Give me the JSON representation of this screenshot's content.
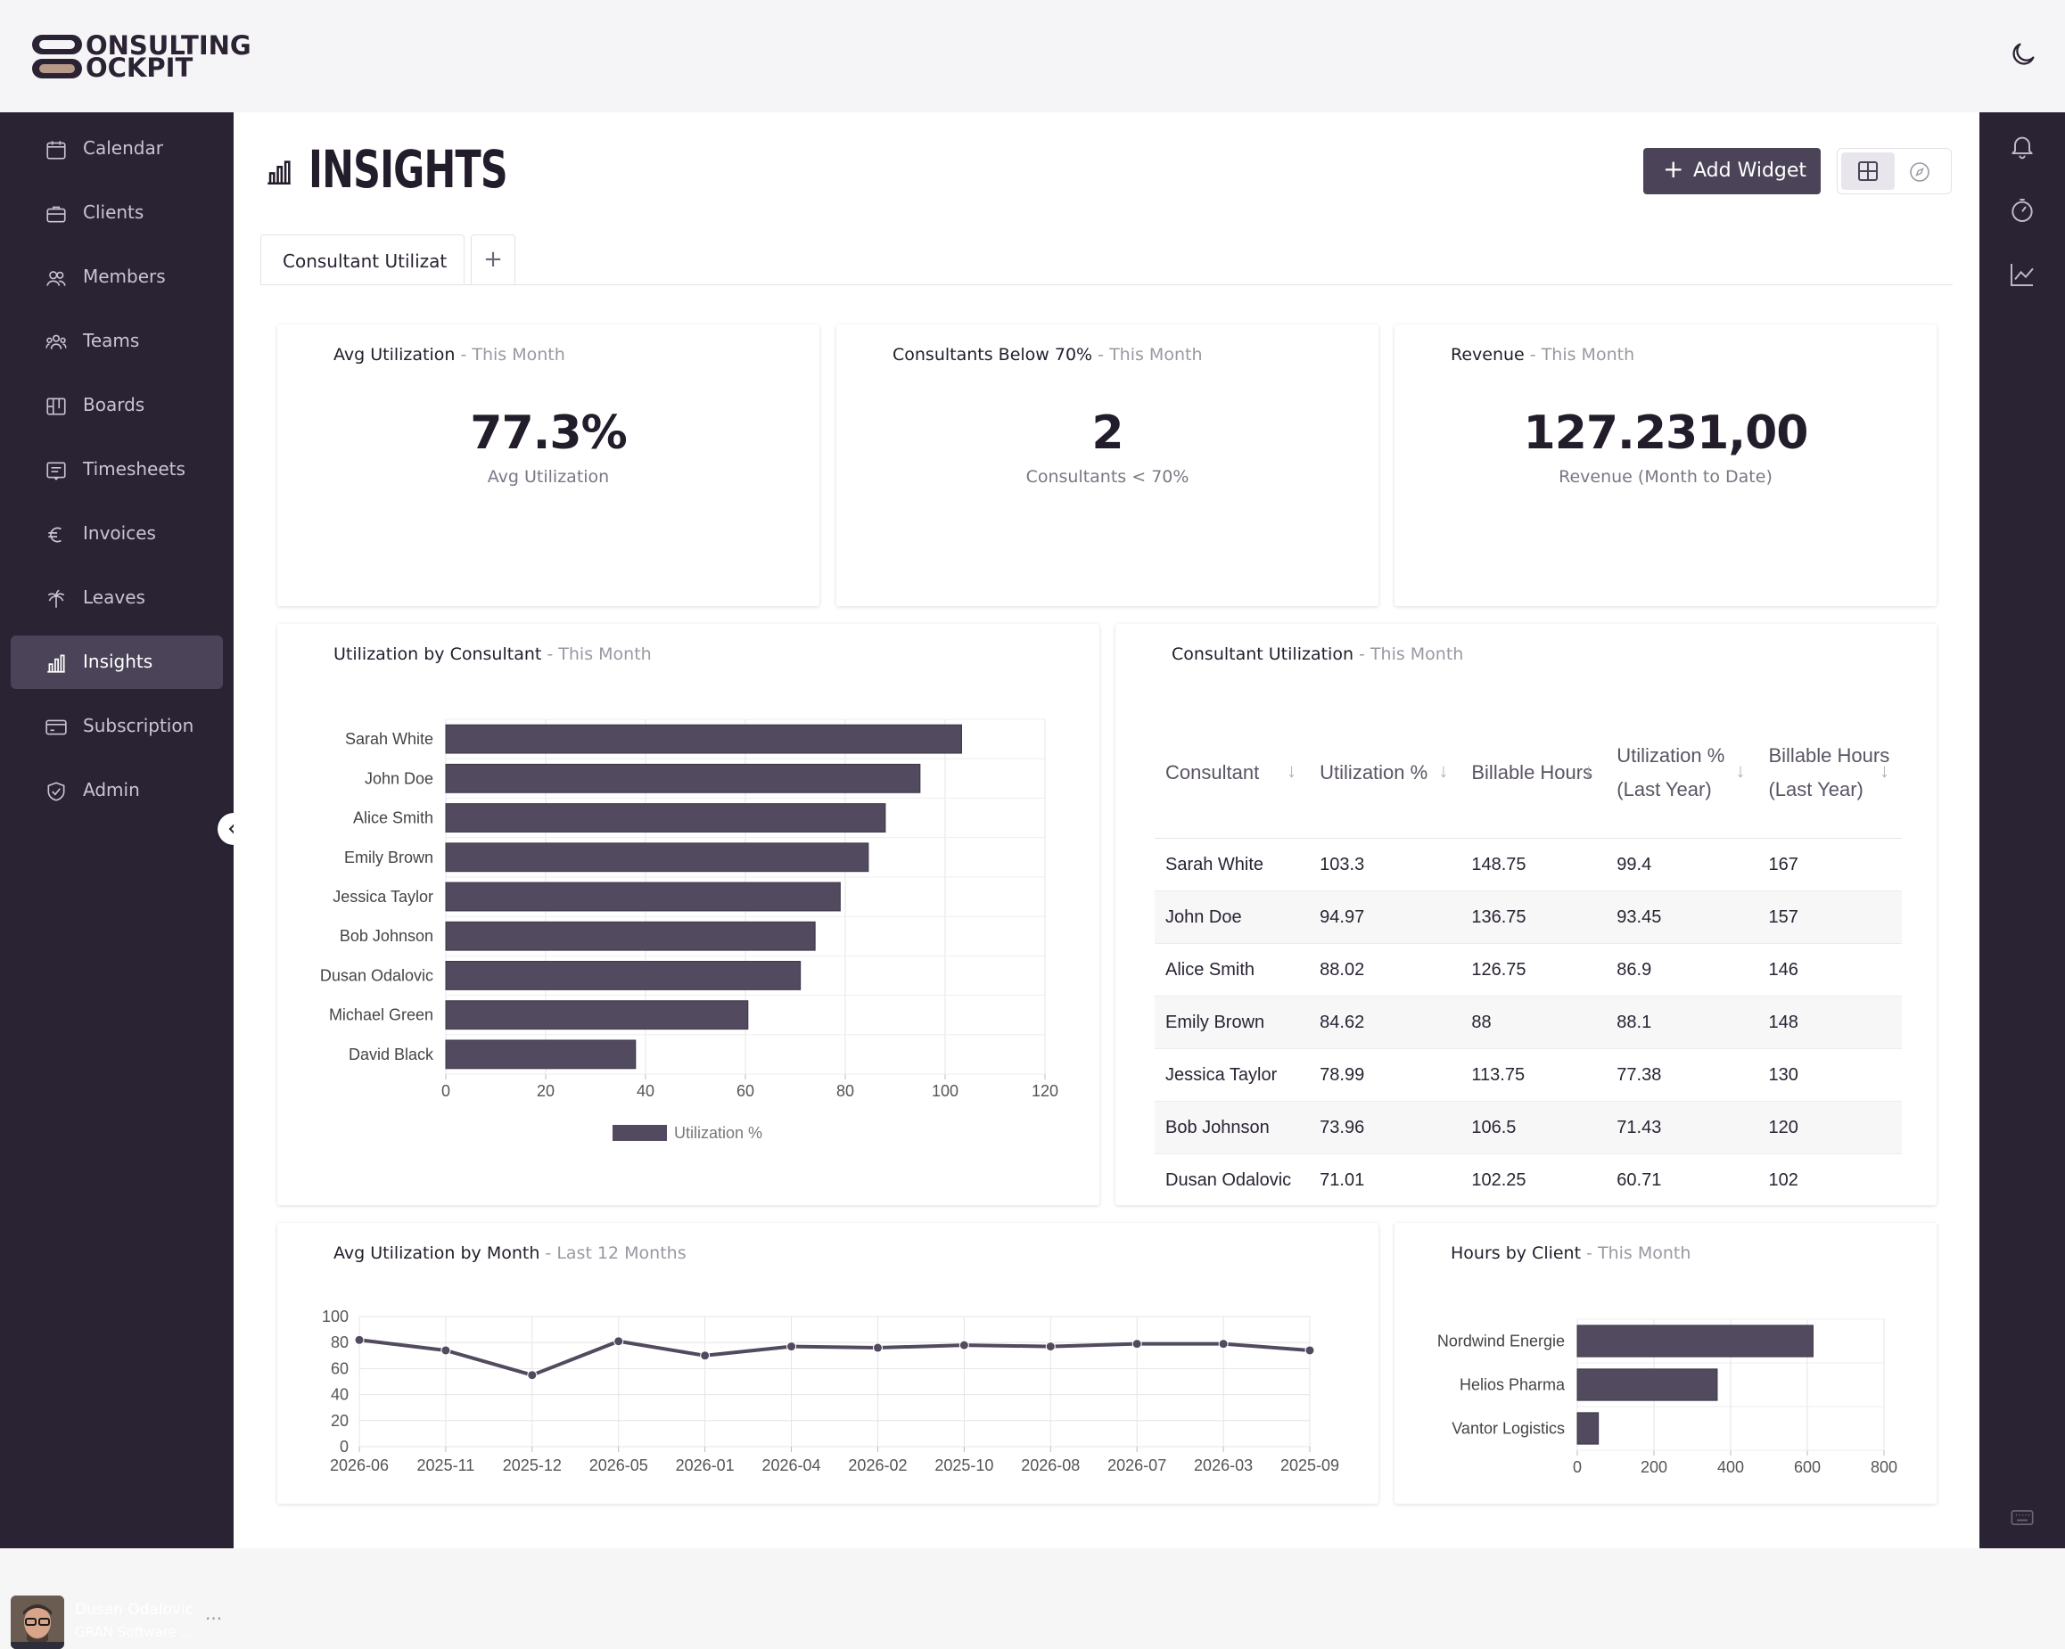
{
  "app": {
    "logo_top": "ONSULTING",
    "logo_bottom": "OCKPIT"
  },
  "sidebar": {
    "items": [
      {
        "label": "Calendar",
        "icon": "calendar-icon"
      },
      {
        "label": "Clients",
        "icon": "briefcase-icon"
      },
      {
        "label": "Members",
        "icon": "members-icon"
      },
      {
        "label": "Teams",
        "icon": "teams-icon"
      },
      {
        "label": "Boards",
        "icon": "board-icon"
      },
      {
        "label": "Timesheets",
        "icon": "timesheet-icon"
      },
      {
        "label": "Invoices",
        "icon": "euro-icon"
      },
      {
        "label": "Leaves",
        "icon": "palm-icon"
      },
      {
        "label": "Insights",
        "icon": "bar-chart-icon",
        "active": true
      },
      {
        "label": "Subscription",
        "icon": "card-icon"
      },
      {
        "label": "Admin",
        "icon": "shield-check-icon"
      }
    ],
    "user": {
      "name": "Dusan Odalovic",
      "org": "GRAN Software ..."
    }
  },
  "header": {
    "title": "INSIGHTS",
    "add_widget": "Add Widget"
  },
  "tabs": [
    {
      "label": "Consultant Utilization"
    }
  ],
  "kpis": [
    {
      "title": "Avg Utilization",
      "period": "- This Month",
      "value": "77.3%",
      "label": "Avg Utilization"
    },
    {
      "title": "Consultants Below 70%",
      "period": "- This Month",
      "value": "2",
      "label": "Consultants < 70%"
    },
    {
      "title": "Revenue",
      "period": "- This Month",
      "value": "127.231,00",
      "label": "Revenue (Month to Date)"
    }
  ],
  "widgets": {
    "util_by_consultant": {
      "title": "Utilization by Consultant",
      "period": "- This Month"
    },
    "consultant_table": {
      "title": "Consultant Utilization",
      "period": "- This Month"
    },
    "avg_by_month": {
      "title": "Avg Utilization by Month",
      "period": "- Last 12 Months"
    },
    "hours_by_client": {
      "title": "Hours by Client",
      "period": "- This Month"
    }
  },
  "table": {
    "columns": [
      "Consultant",
      "Utilization %",
      "Billable Hours",
      "Utilization % (Last Year)",
      "Billable Hours (Last Year)"
    ],
    "rows": [
      [
        "Sarah White",
        "103.3",
        "148.75",
        "99.4",
        "167"
      ],
      [
        "John Doe",
        "94.97",
        "136.75",
        "93.45",
        "157"
      ],
      [
        "Alice Smith",
        "88.02",
        "126.75",
        "86.9",
        "146"
      ],
      [
        "Emily Brown",
        "84.62",
        "88",
        "88.1",
        "148"
      ],
      [
        "Jessica Taylor",
        "78.99",
        "113.75",
        "77.38",
        "130"
      ],
      [
        "Bob Johnson",
        "73.96",
        "106.5",
        "71.43",
        "120"
      ],
      [
        "Dusan Odalovic",
        "71.01",
        "102.25",
        "60.71",
        "102"
      ]
    ]
  },
  "colors": {
    "accent": "#4b4358",
    "sidebar": "#2a2333",
    "bar": "#524a5e"
  },
  "chart_data": [
    {
      "type": "bar",
      "orientation": "horizontal",
      "categories": [
        "Sarah White",
        "John Doe",
        "Alice Smith",
        "Emily Brown",
        "Jessica Taylor",
        "Bob Johnson",
        "Dusan Odalovic",
        "Michael Green",
        "David Black"
      ],
      "series": [
        {
          "name": "Utilization %",
          "values": [
            103.3,
            94.97,
            88.02,
            84.62,
            78.99,
            73.96,
            71.01,
            60.5,
            38
          ]
        }
      ],
      "xlim": [
        0,
        120
      ],
      "xticks": [
        0,
        20,
        40,
        60,
        80,
        100,
        120
      ],
      "grid": true,
      "legend": "bottom"
    },
    {
      "type": "line",
      "categories": [
        "2026-06",
        "2025-11",
        "2025-12",
        "2026-05",
        "2026-01",
        "2026-04",
        "2026-02",
        "2025-10",
        "2026-08",
        "2026-07",
        "2026-03",
        "2025-09"
      ],
      "series": [
        {
          "values": [
            82,
            74,
            55,
            81,
            70,
            77,
            76,
            78,
            77,
            79,
            79,
            74
          ]
        }
      ],
      "ylim": [
        0,
        100
      ],
      "yticks": [
        0,
        20,
        40,
        60,
        80,
        100
      ],
      "grid": true
    },
    {
      "type": "bar",
      "orientation": "horizontal",
      "categories": [
        "Nordwind Energie",
        "Helios Pharma",
        "Vantor Logistics"
      ],
      "series": [
        {
          "values": [
            615,
            365,
            55
          ]
        }
      ],
      "xlim": [
        0,
        800
      ],
      "xticks": [
        0,
        200,
        400,
        600,
        800
      ],
      "grid": true
    }
  ]
}
